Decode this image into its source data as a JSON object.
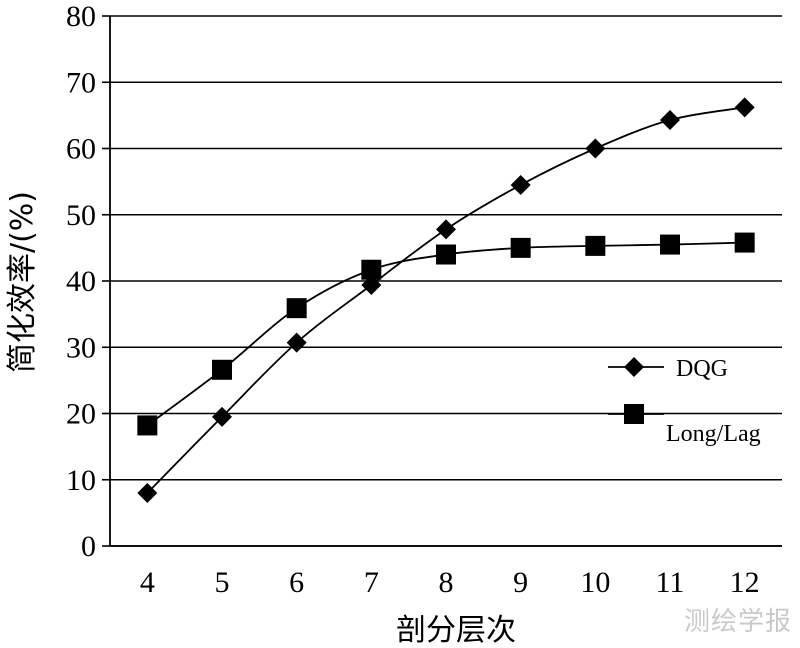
{
  "watermark": "测绘学报",
  "chart_data": {
    "type": "line",
    "title": "",
    "xlabel": "剖分层次",
    "ylabel": "简化效率/(%)",
    "x": [
      4,
      5,
      6,
      7,
      8,
      9,
      10,
      11,
      12
    ],
    "xlim": [
      3.5,
      12.5
    ],
    "ylim": [
      0,
      80
    ],
    "yticks": [
      0,
      10,
      20,
      30,
      40,
      50,
      60,
      70,
      80
    ],
    "grid": "horizontal",
    "legend_position": "right",
    "series": [
      {
        "name": "DQG",
        "marker": "diamond",
        "color": "#000000",
        "values": [
          8.0,
          19.5,
          30.7,
          39.4,
          47.8,
          54.5,
          60.0,
          64.3,
          66.2
        ]
      },
      {
        "name": "Long/Lag",
        "marker": "square",
        "color": "#000000",
        "values": [
          18.2,
          26.6,
          35.9,
          41.7,
          44.0,
          45.0,
          45.3,
          45.5,
          45.8
        ]
      }
    ]
  }
}
